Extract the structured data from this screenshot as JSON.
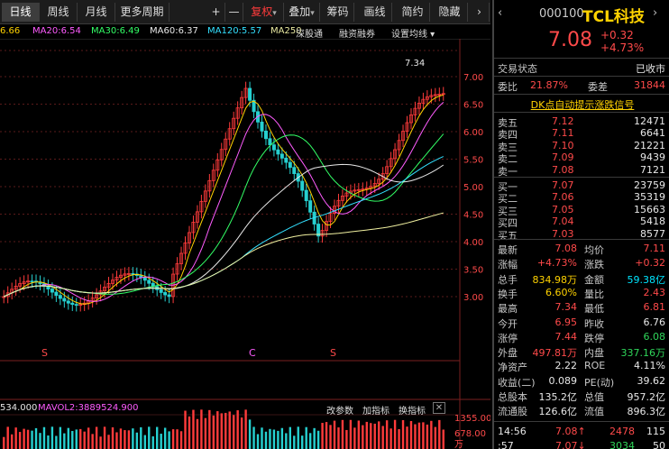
{
  "toolbar": {
    "periods": [
      "日线",
      "周线",
      "月线",
      "更多周期"
    ],
    "plus": "+",
    "minus": "—",
    "adjust": "复权",
    "overlay": "叠加",
    "chips": "筹码",
    "draw": "画线",
    "simple": "简约",
    "hide": "隐藏"
  },
  "ma_line": {
    "ma10": "6.66",
    "ma20": "MA20:6.54",
    "ma30": "MA30:6.49",
    "ma60": "MA60:6.37",
    "ma120": "MA120:5.57",
    "ma250": "MA250",
    "tab_deep": "深股通",
    "tab_margin": "融资融券",
    "settings": "设置均线"
  },
  "price_axis": [
    "7.00",
    "6.50",
    "6.00",
    "5.50",
    "5.00",
    "4.50",
    "4.00",
    "3.50",
    "3.00"
  ],
  "chart_annotation": "7.34",
  "markers": [
    "S",
    "C",
    "S"
  ],
  "volume": {
    "vol_label": "534.000",
    "mavol": "MAVOL2:3889524.900",
    "btn_change": "改参数",
    "btn_add": "加指标",
    "btn_swap": "换指标",
    "axis": [
      "1355.00",
      "678.00"
    ],
    "unit": "万"
  },
  "stock": {
    "code": "000100",
    "name": "TCL科技",
    "price": "7.08",
    "change": "+0.32",
    "change_pct": "+4.73%",
    "status_label": "交易状态",
    "status": "已收市",
    "weibi_label": "委比",
    "weibi": "21.87%",
    "weicha_label": "委差",
    "weicha": "31844",
    "signal": "DK点自动提示涨跌信号"
  },
  "sell": [
    {
      "label": "卖五",
      "price": "7.12",
      "vol": "12471"
    },
    {
      "label": "卖四",
      "price": "7.11",
      "vol": "6641"
    },
    {
      "label": "卖三",
      "price": "7.10",
      "vol": "21221"
    },
    {
      "label": "卖二",
      "price": "7.09",
      "vol": "9439"
    },
    {
      "label": "卖一",
      "price": "7.08",
      "vol": "7121"
    }
  ],
  "buy": [
    {
      "label": "买一",
      "price": "7.07",
      "vol": "23759"
    },
    {
      "label": "买二",
      "price": "7.06",
      "vol": "35319"
    },
    {
      "label": "买三",
      "price": "7.05",
      "vol": "15663"
    },
    {
      "label": "买四",
      "price": "7.04",
      "vol": "5418"
    },
    {
      "label": "买五",
      "price": "7.03",
      "vol": "8577"
    }
  ],
  "stats": [
    {
      "l1": "最新",
      "v1": "7.08",
      "c1": "up",
      "l2": "均价",
      "v2": "7.11",
      "c2": "up"
    },
    {
      "l1": "涨幅",
      "v1": "+4.73%",
      "c1": "up",
      "l2": "涨跌",
      "v2": "+0.32",
      "c2": "up"
    },
    {
      "l1": "总手",
      "v1": "834.98万",
      "c1": "yl",
      "l2": "金额",
      "v2": "59.38亿",
      "c2": "cy"
    },
    {
      "l1": "换手",
      "v1": "6.60%",
      "c1": "yl",
      "l2": "量比",
      "v2": "2.43",
      "c2": "up"
    },
    {
      "l1": "最高",
      "v1": "7.34",
      "c1": "up",
      "l2": "最低",
      "v2": "6.81",
      "c2": "up"
    },
    {
      "l1": "今开",
      "v1": "6.95",
      "c1": "up",
      "l2": "昨收",
      "v2": "6.76",
      "c2": "wh"
    },
    {
      "l1": "涨停",
      "v1": "7.44",
      "c1": "up",
      "l2": "跌停",
      "v2": "6.08",
      "c2": "dn"
    },
    {
      "l1": "外盘",
      "v1": "497.81万",
      "c1": "up",
      "l2": "内盘",
      "v2": "337.16万",
      "c2": "dn"
    },
    {
      "l1": "净资产",
      "v1": "2.22",
      "c1": "wh",
      "l2": "ROE",
      "v2": "4.11%",
      "c2": "wh"
    },
    {
      "l1": "收益(二)",
      "v1": "0.089",
      "c1": "wh",
      "l2": "PE(动)",
      "v2": "39.62",
      "c2": "wh"
    },
    {
      "l1": "总股本",
      "v1": "135.2亿",
      "c1": "wh",
      "l2": "总值",
      "v2": "957.2亿",
      "c2": "wh"
    },
    {
      "l1": "流通股",
      "v1": "126.6亿",
      "c1": "wh",
      "l2": "流值",
      "v2": "896.3亿",
      "c2": "wh"
    }
  ],
  "ticks": [
    {
      "time": "14:56",
      "price": "7.08↑",
      "vol": "2478",
      "num": "115"
    },
    {
      "time": ":57",
      "price": "7.07↓",
      "vol": "3034",
      "num": "50"
    }
  ]
}
